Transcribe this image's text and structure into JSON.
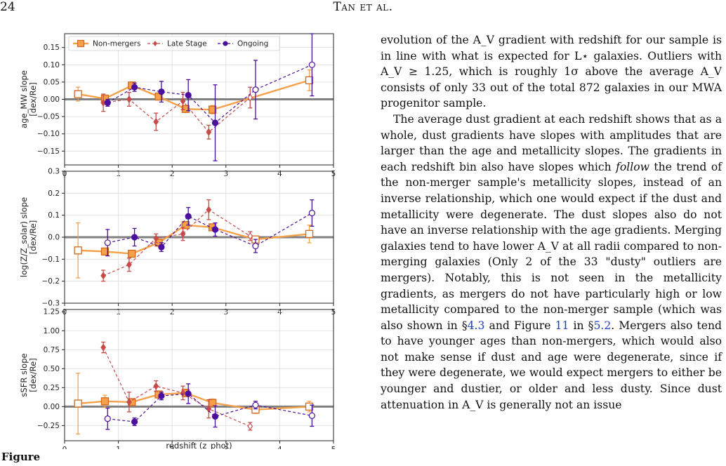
{
  "header": {
    "page_number": "24",
    "running_head": "Tan et al."
  },
  "figure": {
    "colors": {
      "non_mergers": "#f4a14a",
      "non_mergers_edge": "#d2691e",
      "late_stage": "#c84b4b",
      "ongoing": "#4b0f9e",
      "zero_line": "#808080",
      "grid": "#dddddd"
    },
    "legend": {
      "non_mergers": "Non-mergers",
      "late_stage": "Late Stage",
      "ongoing": "Ongoing"
    },
    "xlabel": "redshift (z_phot)",
    "xlim": [
      0,
      5
    ],
    "xticks": [
      "0",
      "1",
      "2",
      "3",
      "4",
      "5"
    ],
    "panels": [
      {
        "ylabel_line1": "age_MW slope",
        "ylabel_line2": "[dex/Re]",
        "ylim": [
          -0.19,
          0.19
        ],
        "yticks": [
          {
            "v": 0.15,
            "t": "0.15"
          },
          {
            "v": 0.1,
            "t": "0.10"
          },
          {
            "v": 0.05,
            "t": "0.05"
          },
          {
            "v": 0.0,
            "t": "0.00"
          },
          {
            "v": -0.05,
            "t": "−0.05"
          },
          {
            "v": -0.1,
            "t": "−0.10"
          },
          {
            "v": -0.15,
            "t": "−0.15"
          }
        ],
        "non_mergers": [
          {
            "x": 0.25,
            "y": 0.015,
            "e": 0.02,
            "filled": false
          },
          {
            "x": 0.75,
            "y": 0.002,
            "e": 0.01,
            "filled": true
          },
          {
            "x": 1.25,
            "y": 0.04,
            "e": 0.01,
            "filled": true
          },
          {
            "x": 1.75,
            "y": 0.008,
            "e": 0.01,
            "filled": true
          },
          {
            "x": 2.25,
            "y": -0.028,
            "e": 0.01,
            "filled": true
          },
          {
            "x": 2.75,
            "y": -0.03,
            "e": 0.012,
            "filled": true
          },
          {
            "x": 4.55,
            "y": 0.055,
            "e": 0.03,
            "filled": false
          }
        ],
        "late_stage": [
          {
            "x": 0.72,
            "y": -0.01,
            "e": 0.025,
            "filled": true
          },
          {
            "x": 1.2,
            "y": 0.0,
            "e": 0.02,
            "filled": true
          },
          {
            "x": 1.7,
            "y": -0.065,
            "e": 0.025,
            "filled": true
          },
          {
            "x": 2.2,
            "y": -0.005,
            "e": 0.025,
            "filled": true
          },
          {
            "x": 2.68,
            "y": -0.095,
            "e": 0.02,
            "filled": true
          },
          {
            "x": 3.45,
            "y": 0.005,
            "e": 0.03,
            "filled": false
          }
        ],
        "ongoing": [
          {
            "x": 0.8,
            "y": -0.01,
            "e": 0.01,
            "filled": true
          },
          {
            "x": 1.3,
            "y": 0.035,
            "e": 0.012,
            "filled": true
          },
          {
            "x": 1.8,
            "y": 0.022,
            "e": 0.03,
            "filled": true
          },
          {
            "x": 2.3,
            "y": 0.012,
            "e": 0.045,
            "filled": true
          },
          {
            "x": 2.8,
            "y": -0.068,
            "e": 0.11,
            "filled": true
          },
          {
            "x": 3.55,
            "y": 0.028,
            "e": 0.085,
            "filled": false
          },
          {
            "x": 4.6,
            "y": 0.1,
            "e": 0.09,
            "filled": false
          }
        ]
      },
      {
        "ylabel_line1": "log(Z/Z_solar) slope",
        "ylabel_line2": "[dex/Re]",
        "ylim": [
          -0.3,
          0.3
        ],
        "yticks": [
          {
            "v": 0.3,
            "t": "0.3"
          },
          {
            "v": 0.2,
            "t": "0.2"
          },
          {
            "v": 0.1,
            "t": "0.1"
          },
          {
            "v": 0.0,
            "t": "0.0"
          },
          {
            "v": -0.1,
            "t": "−0.1"
          },
          {
            "v": -0.2,
            "t": "−0.2"
          },
          {
            "v": -0.3,
            "t": "−0.3"
          }
        ],
        "non_mergers": [
          {
            "x": 0.25,
            "y": -0.06,
            "e": 0.125,
            "filled": false
          },
          {
            "x": 0.75,
            "y": -0.065,
            "e": 0.015,
            "filled": true
          },
          {
            "x": 1.25,
            "y": -0.075,
            "e": 0.015,
            "filled": true
          },
          {
            "x": 1.75,
            "y": -0.025,
            "e": 0.015,
            "filled": true
          },
          {
            "x": 2.25,
            "y": 0.055,
            "e": 0.015,
            "filled": true
          },
          {
            "x": 2.75,
            "y": 0.045,
            "e": 0.015,
            "filled": true
          },
          {
            "x": 3.55,
            "y": -0.01,
            "e": 0.015,
            "filled": false
          },
          {
            "x": 4.55,
            "y": 0.015,
            "e": 0.04,
            "filled": false
          }
        ],
        "late_stage": [
          {
            "x": 0.72,
            "y": -0.175,
            "e": 0.025,
            "filled": true
          },
          {
            "x": 1.2,
            "y": -0.125,
            "e": 0.03,
            "filled": true
          },
          {
            "x": 1.7,
            "y": -0.005,
            "e": 0.02,
            "filled": true
          },
          {
            "x": 2.2,
            "y": 0.015,
            "e": 0.03,
            "filled": true
          },
          {
            "x": 2.68,
            "y": 0.125,
            "e": 0.045,
            "filled": true
          },
          {
            "x": 3.45,
            "y": 0.005,
            "e": 0.02,
            "filled": false
          }
        ],
        "ongoing": [
          {
            "x": 0.8,
            "y": -0.025,
            "e": 0.06,
            "filled": false
          },
          {
            "x": 1.3,
            "y": 0.0,
            "e": 0.04,
            "filled": true
          },
          {
            "x": 1.8,
            "y": -0.045,
            "e": 0.02,
            "filled": true
          },
          {
            "x": 2.3,
            "y": 0.095,
            "e": 0.04,
            "filled": true
          },
          {
            "x": 2.8,
            "y": 0.035,
            "e": 0.03,
            "filled": true
          },
          {
            "x": 3.55,
            "y": -0.04,
            "e": 0.03,
            "filled": false
          },
          {
            "x": 4.6,
            "y": 0.11,
            "e": 0.06,
            "filled": false
          }
        ]
      },
      {
        "ylabel_line1": "sSFR slope",
        "ylabel_line2": "[dex/Re]",
        "ylim": [
          -0.45,
          1.28
        ],
        "yticks": [
          {
            "v": 1.25,
            "t": "1.25"
          },
          {
            "v": 1.0,
            "t": "1.00"
          },
          {
            "v": 0.75,
            "t": "0.75"
          },
          {
            "v": 0.5,
            "t": "0.50"
          },
          {
            "v": 0.25,
            "t": "0.25"
          },
          {
            "v": 0.0,
            "t": "0.00"
          },
          {
            "v": -0.25,
            "t": "−0.25"
          }
        ],
        "non_mergers": [
          {
            "x": 0.25,
            "y": 0.04,
            "e": 0.4,
            "filled": false
          },
          {
            "x": 0.75,
            "y": 0.07,
            "e": 0.08,
            "filled": true
          },
          {
            "x": 1.25,
            "y": 0.06,
            "e": 0.04,
            "filled": true
          },
          {
            "x": 1.75,
            "y": 0.16,
            "e": 0.04,
            "filled": true
          },
          {
            "x": 2.25,
            "y": 0.18,
            "e": 0.05,
            "filled": true
          },
          {
            "x": 2.75,
            "y": 0.05,
            "e": 0.05,
            "filled": true
          },
          {
            "x": 3.55,
            "y": -0.04,
            "e": 0.05,
            "filled": false
          },
          {
            "x": 4.55,
            "y": 0.0,
            "e": 0.07,
            "filled": false
          }
        ],
        "late_stage": [
          {
            "x": 0.72,
            "y": 0.78,
            "e": 0.07,
            "filled": true
          },
          {
            "x": 1.2,
            "y": 0.06,
            "e": 0.13,
            "filled": true
          },
          {
            "x": 1.7,
            "y": 0.27,
            "e": 0.07,
            "filled": true
          },
          {
            "x": 2.2,
            "y": 0.18,
            "e": 0.09,
            "filled": true
          },
          {
            "x": 2.68,
            "y": -0.03,
            "e": 0.12,
            "filled": true
          },
          {
            "x": 3.45,
            "y": -0.26,
            "e": 0.05,
            "filled": false
          }
        ],
        "ongoing": [
          {
            "x": 0.8,
            "y": -0.16,
            "e": 0.14,
            "filled": false
          },
          {
            "x": 1.3,
            "y": -0.2,
            "e": 0.05,
            "filled": true
          },
          {
            "x": 1.8,
            "y": 0.14,
            "e": 0.05,
            "filled": true
          },
          {
            "x": 2.3,
            "y": 0.17,
            "e": 0.13,
            "filled": true
          },
          {
            "x": 2.8,
            "y": -0.13,
            "e": 0.14,
            "filled": true
          },
          {
            "x": 3.55,
            "y": 0.02,
            "e": 0.05,
            "filled": false
          },
          {
            "x": 4.6,
            "y": -0.12,
            "e": 0.14,
            "filled": false
          }
        ]
      }
    ]
  },
  "caption_fragment": "Figure",
  "text": {
    "p1": "evolution of the A_V gradient with redshift for our sample is in line with what is expected for L⋆ galaxies. Outliers with A_V ≥ 1.25, which is roughly 1σ above the average A_V consists of only 33 out of the total 872 galaxies in our MWA progenitor sample.",
    "p2_a": "The average dust gradient at each redshift shows that as a whole, dust gradients have slopes with amplitudes that are larger than the age and metallicity slopes. The gradients in each redshift bin also have slopes which ",
    "p2_italic": "follow",
    "p2_b": " the trend of the non-merger sample's metallicity slopes, instead of an inverse relationship, which one would expect if the dust and metallicity were degenerate. The dust slopes also do not have an inverse relationship with the age gradients. Merging galaxies tend to have lower A_V at all radii compared to non-merging galaxies (Only 2 of the 33 \"dusty\" outliers are mergers). Notably, this is not seen in the metallicity gradients, as mergers do not have particularly high or low metallicity compared to the non-merger sample (which was also shown in §",
    "p2_ref1": "4.3",
    "p2_c": " and Figure ",
    "p2_ref2": "11",
    "p2_d": " in §",
    "p2_ref3": "5.2",
    "p2_e": ". Mergers also tend to have younger ages than non-mergers, which would also not make sense if dust and age were degenerate, since if they were degenerate, we would expect mergers to either be younger and dustier, or older and less dusty. Since dust attenuation in A_V is generally not an issue"
  }
}
